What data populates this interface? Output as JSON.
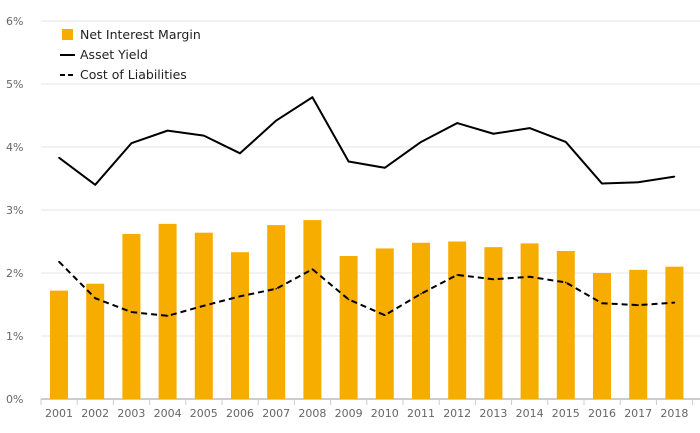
{
  "chart_data": {
    "type": "bar",
    "categories": [
      "2001",
      "2002",
      "2003",
      "2004",
      "2005",
      "2006",
      "2007",
      "2008",
      "2009",
      "2010",
      "2011",
      "2012",
      "2013",
      "2014",
      "2015",
      "2016",
      "2017",
      "2018"
    ],
    "series": [
      {
        "name": "Net Interest Margin",
        "type": "bar",
        "color": "#f7ad00",
        "values": [
          1.72,
          1.83,
          2.62,
          2.78,
          2.64,
          2.33,
          2.76,
          2.84,
          2.27,
          2.39,
          2.48,
          2.5,
          2.41,
          2.47,
          2.35,
          2.0,
          2.05,
          2.1
        ]
      },
      {
        "name": "Asset Yield",
        "type": "line",
        "style": "solid",
        "color": "#000000",
        "values": [
          3.83,
          3.4,
          4.06,
          4.26,
          4.18,
          3.9,
          4.42,
          4.79,
          3.77,
          3.67,
          4.08,
          4.38,
          4.21,
          4.3,
          4.08,
          3.42,
          3.44,
          3.53
        ]
      },
      {
        "name": "Cost of Liabilities",
        "type": "line",
        "style": "dashed",
        "color": "#000000",
        "values": [
          2.18,
          1.6,
          1.38,
          1.32,
          1.48,
          1.63,
          1.75,
          2.06,
          1.58,
          1.33,
          1.67,
          1.97,
          1.9,
          1.94,
          1.85,
          1.52,
          1.49,
          1.53
        ]
      }
    ],
    "ylim": [
      0,
      6
    ],
    "yticks": [
      "0%",
      "1%",
      "2%",
      "3%",
      "4%",
      "5%",
      "6%"
    ],
    "grid": true,
    "legend": "top-left",
    "title": "",
    "xlabel": "",
    "ylabel": ""
  }
}
